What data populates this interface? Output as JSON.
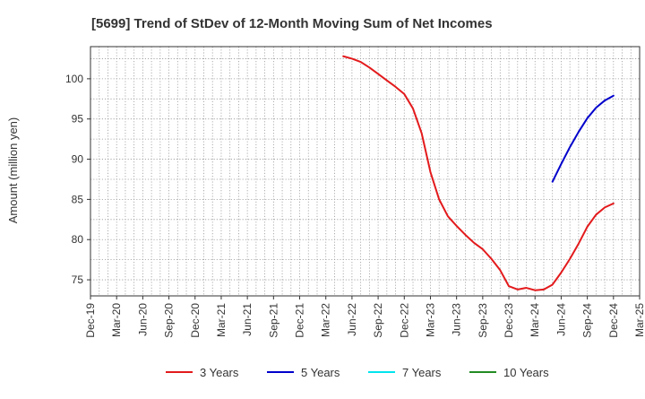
{
  "chart_data": {
    "type": "line",
    "title": "[5699]  Trend of StDev of 12-Month Moving Sum of Net Incomes",
    "xlabel": "",
    "ylabel": "Amount (million yen)",
    "ylim": [
      73,
      104
    ],
    "yticks": [
      75,
      80,
      85,
      90,
      95,
      100
    ],
    "grid": true,
    "legend_position": "bottom",
    "x_tick_labels": [
      "Dec-19",
      "Mar-20",
      "Jun-20",
      "Sep-20",
      "Dec-20",
      "Mar-21",
      "Jun-21",
      "Sep-21",
      "Dec-21",
      "Mar-22",
      "Jun-22",
      "Sep-22",
      "Dec-22",
      "Mar-23",
      "Jun-23",
      "Sep-23",
      "Dec-23",
      "Mar-24",
      "Jun-24",
      "Sep-24",
      "Dec-24",
      "Mar-25"
    ],
    "series": [
      {
        "name": "3 Years",
        "color": "#e31a1c",
        "x": [
          "May-22",
          "Jun-22",
          "Jul-22",
          "Aug-22",
          "Sep-22",
          "Oct-22",
          "Nov-22",
          "Dec-22",
          "Jan-23",
          "Feb-23",
          "Mar-23",
          "Apr-23",
          "May-23",
          "Jun-23",
          "Jul-23",
          "Aug-23",
          "Sep-23",
          "Oct-23",
          "Nov-23",
          "Dec-23",
          "Jan-24",
          "Feb-24",
          "Mar-24",
          "Apr-24",
          "May-24",
          "Jun-24",
          "Jul-24",
          "Aug-24",
          "Sep-24",
          "Oct-24",
          "Nov-24",
          "Dec-24"
        ],
        "values": [
          102.8,
          102.5,
          102.1,
          101.4,
          100.6,
          99.8,
          99.0,
          98.1,
          96.3,
          93.2,
          88.4,
          85.0,
          82.9,
          81.7,
          80.6,
          79.6,
          78.8,
          77.6,
          76.2,
          74.2,
          73.8,
          74.0,
          73.7,
          73.8,
          74.4,
          75.9,
          77.6,
          79.5,
          81.6,
          83.1,
          84.0,
          84.5
        ]
      },
      {
        "name": "5 Years",
        "color": "#0000cc",
        "x": [
          "May-24",
          "Jun-24",
          "Jul-24",
          "Aug-24",
          "Sep-24",
          "Oct-24",
          "Nov-24",
          "Dec-24"
        ],
        "values": [
          87.2,
          89.4,
          91.5,
          93.4,
          95.1,
          96.4,
          97.3,
          97.9
        ]
      },
      {
        "name": "7 Years",
        "color": "#00e5ee",
        "x": [],
        "values": []
      },
      {
        "name": "10 Years",
        "color": "#228b22",
        "x": [],
        "values": []
      }
    ]
  }
}
